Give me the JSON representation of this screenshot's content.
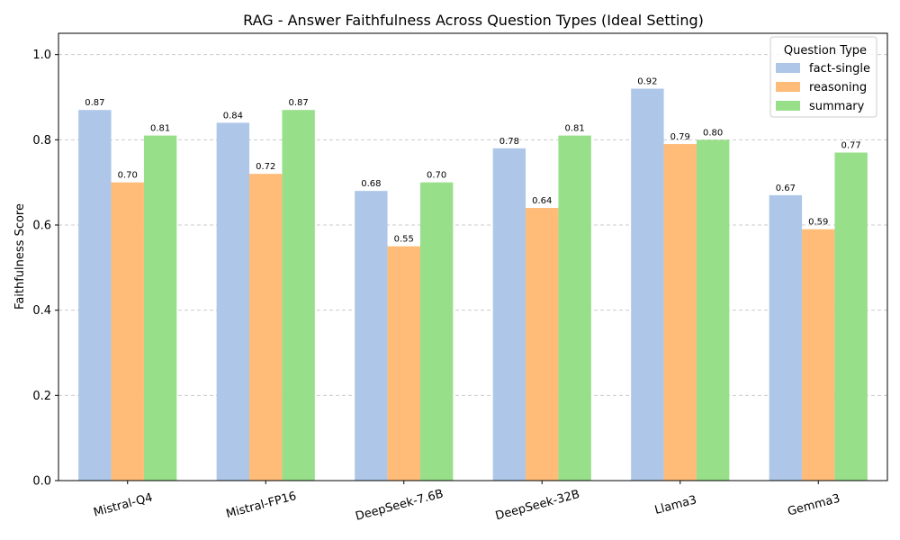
{
  "chart_data": {
    "type": "bar",
    "title": "RAG - Answer Faithfulness Across Question Types (Ideal Setting)",
    "xlabel": "",
    "ylabel": "Faithfulness Score",
    "ylim": [
      0,
      1.05
    ],
    "yticks": [
      "0.0",
      "0.2",
      "0.4",
      "0.6",
      "0.8",
      "1.0"
    ],
    "grid": "y-dashed",
    "legend_title": "Question Type",
    "legend_position": "top-right",
    "categories": [
      "Mistral-Q4",
      "Mistral-FP16",
      "DeepSeek-7.6B",
      "DeepSeek-32B",
      "Llama3",
      "Gemma3"
    ],
    "series": [
      {
        "name": "fact-single",
        "color": "#aec7e8",
        "values": [
          0.87,
          0.84,
          0.68,
          0.78,
          0.92,
          0.67
        ],
        "labels": [
          "0.87",
          "0.84",
          "0.68",
          "0.78",
          "0.92",
          "0.67"
        ]
      },
      {
        "name": "reasoning",
        "color": "#ffbb78",
        "values": [
          0.7,
          0.72,
          0.55,
          0.64,
          0.79,
          0.59
        ],
        "labels": [
          "0.70",
          "0.72",
          "0.55",
          "0.64",
          "0.79",
          "0.59"
        ]
      },
      {
        "name": "summary",
        "color": "#98df8a",
        "values": [
          0.81,
          0.87,
          0.7,
          0.81,
          0.8,
          0.77
        ],
        "labels": [
          "0.81",
          "0.87",
          "0.70",
          "0.81",
          "0.80",
          "0.77"
        ]
      }
    ]
  }
}
